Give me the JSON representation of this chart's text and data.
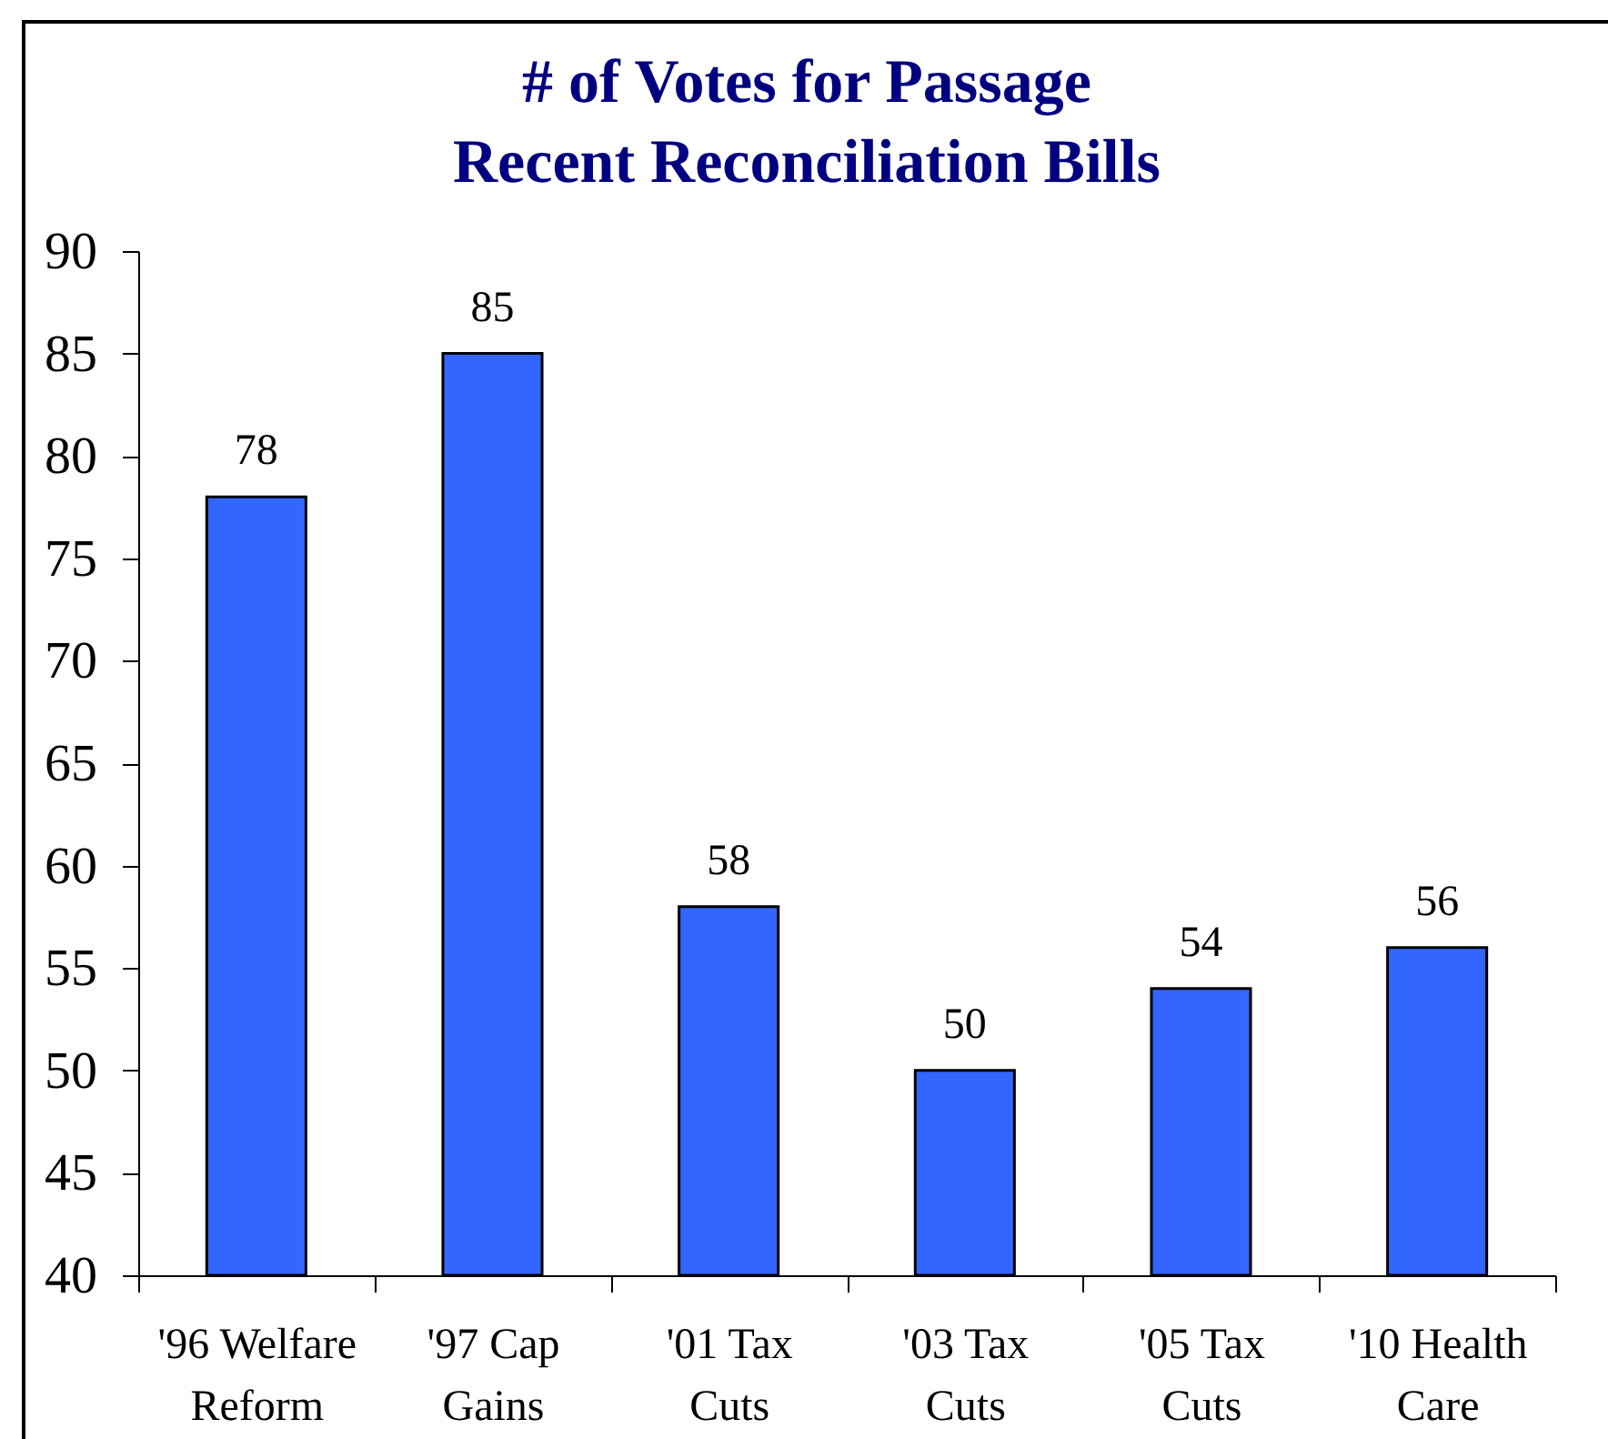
{
  "chart_data": {
    "type": "bar",
    "title": "# of Votes for Passage",
    "subtitle": "Recent Reconciliation Bills",
    "categories": [
      "'96 Welfare Reform",
      "'97 Cap Gains",
      "'01 Tax Cuts",
      "'03 Tax Cuts",
      "'05 Tax Cuts",
      "'10 Health Care"
    ],
    "values": [
      78,
      85,
      58,
      50,
      54,
      56
    ],
    "color": "#3366ff",
    "ylim": [
      40,
      90
    ],
    "yticks": [
      40,
      45,
      50,
      55,
      60,
      65,
      70,
      75,
      80,
      85,
      90
    ],
    "grid": false,
    "data_labels": true
  }
}
